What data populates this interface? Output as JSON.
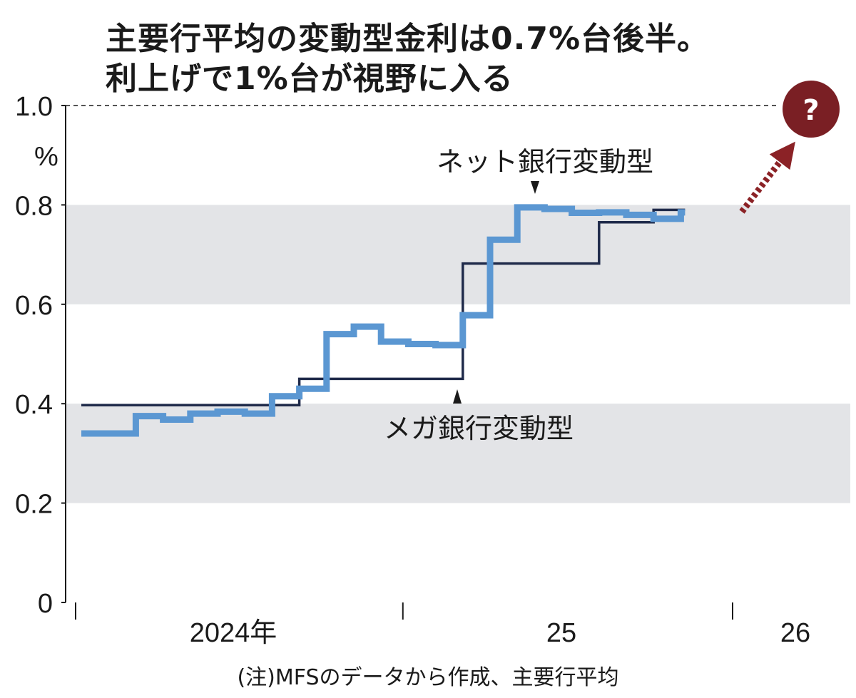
{
  "title_line1": "主要行平均の変動型金利は0.7%台後半。",
  "title_line2": "利上げで1%台が視野に入る",
  "chart_data": {
    "type": "line",
    "step": true,
    "unit": "%",
    "ylim": [
      0,
      1.0
    ],
    "yticks": [
      "1.0",
      "0.8",
      "0.6",
      "0.4",
      "0.2",
      "0"
    ],
    "xticks": [
      "2024年",
      "25",
      "26"
    ],
    "shaded_bands": [
      [
        0.2,
        0.4
      ],
      [
        0.6,
        0.8
      ]
    ],
    "reference_line": 1.0,
    "series": [
      {
        "name": "ネット銀行変動型",
        "color": "#5b97d2",
        "x": [
          "2024-01",
          "2024-02",
          "2024-03",
          "2024-04",
          "2024-05",
          "2024-06",
          "2024-07",
          "2024-08",
          "2024-09",
          "2024-10",
          "2024-11",
          "2024-12",
          "2025-01",
          "2025-02",
          "2025-03",
          "2025-04",
          "2025-05",
          "2025-06",
          "2025-07",
          "2025-08",
          "2025-09",
          "2025-10",
          "2025-11"
        ],
        "values": [
          0.34,
          0.34,
          0.375,
          0.368,
          0.38,
          0.384,
          0.38,
          0.415,
          0.43,
          0.54,
          0.555,
          0.525,
          0.52,
          0.518,
          0.578,
          0.73,
          0.795,
          0.792,
          0.784,
          0.785,
          0.78,
          0.772,
          0.785
        ]
      },
      {
        "name": "メガ銀行変動型",
        "color": "#1f2a4a",
        "x": [
          "2024-01",
          "2024-08",
          "2024-09",
          "2025-01",
          "2025-02",
          "2025-03",
          "2025-04",
          "2025-05",
          "2025-06",
          "2025-07",
          "2025-08",
          "2025-09",
          "2025-10",
          "2025-11"
        ],
        "values": [
          0.397,
          0.397,
          0.45,
          0.45,
          0.45,
          0.682,
          0.682,
          0.682,
          0.682,
          0.682,
          0.765,
          0.765,
          0.79,
          0.79
        ]
      }
    ],
    "annotations": {
      "net_label": "ネット銀行変動型",
      "mega_label": "メガ銀行変動型",
      "question": "?"
    },
    "note": "(注)MFSのデータから作成、主要行平均"
  },
  "colors": {
    "band": "#e3e4e7",
    "net_line": "#5b97d2",
    "mega_line": "#1f2a4a",
    "arrow": "#8b2226",
    "question_bg": "#7a1f24"
  }
}
